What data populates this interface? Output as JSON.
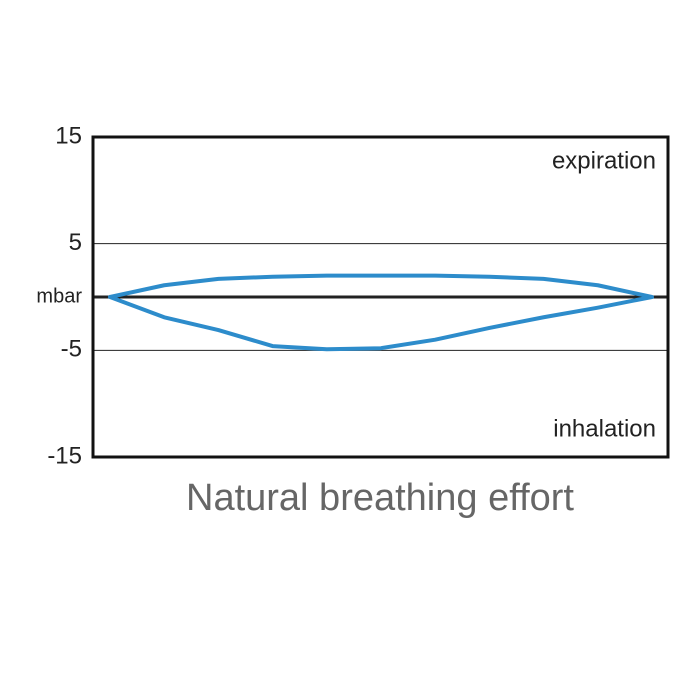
{
  "chart_data": {
    "type": "line",
    "title": "Natural breathing effort",
    "annotations": [
      "expiration",
      "inhalation"
    ],
    "x": [
      0,
      10,
      20,
      30,
      40,
      50,
      60,
      70,
      80,
      90,
      100,
      90,
      80,
      70,
      60,
      50,
      40,
      30,
      20,
      10,
      0
    ],
    "series": [
      {
        "color": "#2d8ccb",
        "values": [
          0,
          -1.9,
          -3.1,
          -4.6,
          -4.9,
          -4.8,
          -4,
          -2.9,
          -1.9,
          -1,
          0,
          1.1,
          1.7,
          1.9,
          2,
          2,
          2,
          1.9,
          1.7,
          1.1,
          0
        ]
      }
    ],
    "ylim": [
      -15,
      15
    ],
    "yticks": [
      15,
      5,
      {
        "value": 0,
        "label": "mbar"
      },
      -5,
      -15
    ],
    "grid": true
  }
}
